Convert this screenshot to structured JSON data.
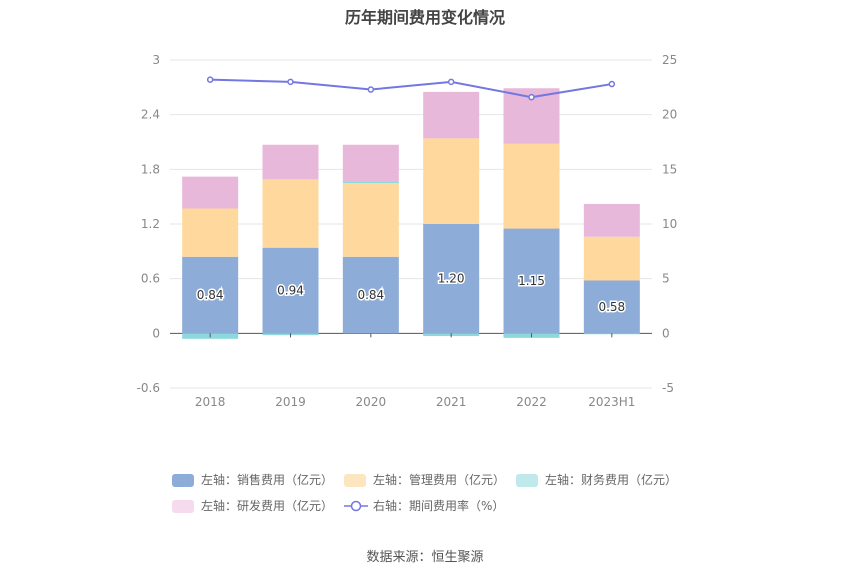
{
  "title": "历年期间费用变化情况",
  "source": "数据来源：恒生聚源",
  "chart_data": {
    "type": "bar",
    "stacked": true,
    "categories": [
      "2018",
      "2019",
      "2020",
      "2021",
      "2022",
      "2023H1"
    ],
    "left_axis": {
      "min": -0.6,
      "max": 3,
      "ticks": [
        "-0.6",
        "0",
        "0.6",
        "1.2",
        "1.8",
        "2.4",
        "3"
      ]
    },
    "right_axis": {
      "min": -5,
      "max": 25,
      "ticks": [
        "-5",
        "0",
        "5",
        "10",
        "15",
        "20",
        "25"
      ]
    },
    "series": [
      {
        "name": "左轴：销售费用（亿元）",
        "axis": "left",
        "color": "#8eacd8",
        "values": [
          0.84,
          0.94,
          0.84,
          1.2,
          1.15,
          0.58
        ],
        "labels": [
          "0.84",
          "0.94",
          "0.84",
          "1.20",
          "1.15",
          "0.58"
        ]
      },
      {
        "name": "左轴：管理费用（亿元）",
        "axis": "left",
        "color": "#fed89d",
        "values": [
          0.53,
          0.75,
          0.81,
          0.94,
          0.93,
          0.48
        ]
      },
      {
        "name": "左轴：财务费用（亿元）",
        "axis": "left",
        "color": "#8bd9dc",
        "values": [
          -0.06,
          -0.02,
          0.02,
          -0.03,
          -0.05,
          -0.01
        ]
      },
      {
        "name": "左轴：研发费用（亿元）",
        "axis": "left",
        "color": "#e8b8da",
        "values": [
          0.35,
          0.38,
          0.4,
          0.51,
          0.61,
          0.36
        ]
      },
      {
        "name": "右轴：期间费用率（%）",
        "axis": "right",
        "type": "line",
        "color": "#7577e0",
        "values": [
          23.2,
          23.0,
          22.3,
          23.0,
          21.6,
          22.8
        ]
      }
    ],
    "legend": [
      {
        "label": "左轴：销售费用（亿元）",
        "color": "#8eacd8",
        "kind": "box"
      },
      {
        "label": "左轴：管理费用（亿元）",
        "color": "#fde5c0",
        "kind": "box"
      },
      {
        "label": "左轴：财务费用（亿元）",
        "color": "#bfe9eb",
        "kind": "box"
      },
      {
        "label": "左轴：研发费用（亿元）",
        "color": "#f5dbed",
        "kind": "box"
      },
      {
        "label": "右轴：期间费用率（%）",
        "color": "#7577e0",
        "kind": "line"
      }
    ]
  }
}
